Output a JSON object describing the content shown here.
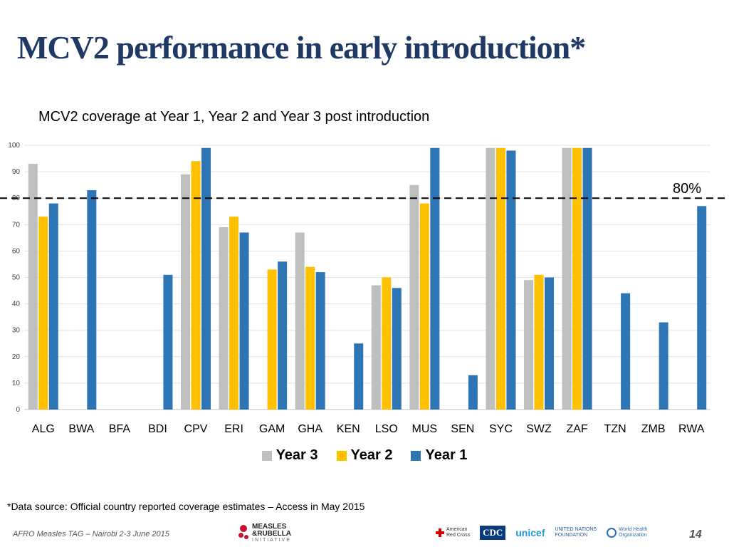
{
  "slide": {
    "title": "MCV2 performance in early introduction*",
    "source_note": "*Data source: Official country reported coverage estimates – Access in May 2015",
    "footer": "AFRO Measles TAG – Nairobi 2-3 June 2015",
    "page_number": "14",
    "logos": {
      "mri_line1": "MEASLES",
      "mri_line2": "&RUBELLA",
      "mri_line3": "INITIATIVE",
      "arc_line1": "American",
      "arc_line2": "Red Cross",
      "cdc": "CDC",
      "unicef": "unicef",
      "unf_line1": "UNITED NATIONS",
      "unf_line2": "FOUNDATION",
      "who_line1": "World Health",
      "who_line2": "Organization"
    }
  },
  "chart_data": {
    "type": "bar",
    "title": "MCV2 coverage at Year 1, Year 2 and Year 3 post introduction",
    "xlabel": "",
    "ylabel": "",
    "ylim": [
      0,
      100
    ],
    "yticks": [
      0,
      10,
      20,
      30,
      40,
      50,
      60,
      70,
      80,
      90,
      100
    ],
    "grid": true,
    "legend_position": "bottom",
    "categories": [
      "ALG",
      "BWA",
      "BFA",
      "BDI",
      "CPV",
      "ERI",
      "GAM",
      "GHA",
      "KEN",
      "LSO",
      "MUS",
      "SEN",
      "SYC",
      "SWZ",
      "ZAF",
      "TZN",
      "ZMB",
      "RWA"
    ],
    "series": [
      {
        "name": "Year 3",
        "color": "#bfbfbf",
        "values": [
          93,
          null,
          null,
          null,
          89,
          69,
          null,
          67,
          null,
          47,
          85,
          null,
          99,
          49,
          99,
          null,
          null,
          null
        ]
      },
      {
        "name": "Year 2",
        "color": "#ffc000",
        "values": [
          73,
          null,
          null,
          null,
          94,
          73,
          53,
          54,
          null,
          50,
          78,
          null,
          99,
          51,
          99,
          null,
          null,
          null
        ]
      },
      {
        "name": "Year 1",
        "color": "#2e75b6",
        "values": [
          78,
          83,
          null,
          51,
          99,
          67,
          56,
          52,
          25,
          46,
          99,
          13,
          98,
          50,
          99,
          44,
          33,
          77
        ]
      }
    ],
    "reference_line": {
      "value": 80,
      "label": "80%"
    }
  }
}
